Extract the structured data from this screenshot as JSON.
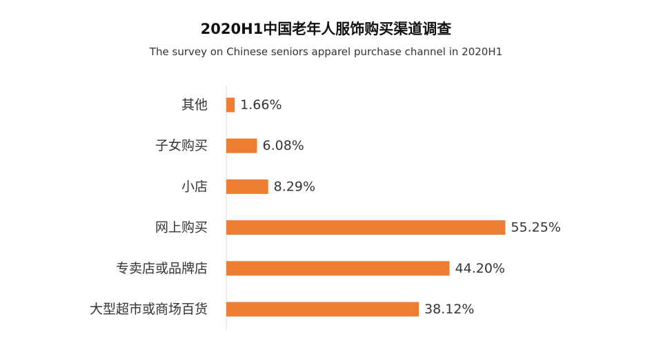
{
  "chart_data": {
    "type": "bar",
    "orientation": "horizontal",
    "title": "2020H1中国老年人服饰购买渠道调查",
    "subtitle": "The survey  on Chinese seniors apparel purchase channel in 2020H1",
    "categories": [
      "其他",
      "子女购买",
      "小店",
      "网上购买",
      "专卖店或品牌店",
      "大型超市或商场百货"
    ],
    "values": [
      1.66,
      6.08,
      8.29,
      55.25,
      44.2,
      38.12
    ],
    "value_labels": [
      "1.66%",
      "6.08%",
      "8.29%",
      "55.25%",
      "44.20%",
      "38.12%"
    ],
    "unit": "%",
    "xlim": [
      0,
      60
    ],
    "grid": false,
    "legend": "none",
    "bar_color": "#ED7D31",
    "axis_color": "#D9D9D9"
  }
}
